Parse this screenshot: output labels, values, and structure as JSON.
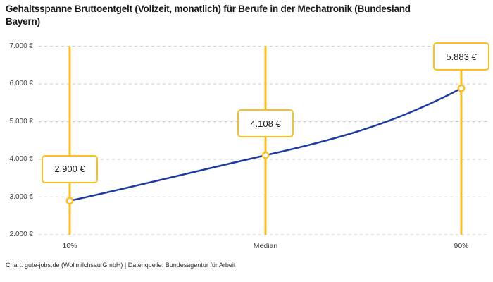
{
  "title": "Gehaltsspanne Bruttoentgelt (Vollzeit, monatlich) für Berufe in der Mechatronik (Bundesland Bayern)",
  "footer": "Chart: gute-jobs.de (Wollmilchsau GmbH) | Datenquelle: Bundesagentur für Arbeit",
  "colors": {
    "accent_gold": "#f9c11f",
    "line_blue": "#1e3a9f",
    "grid": "#cbcbcb",
    "marker_fill": "#ffffff",
    "title_text": "#1a1a1a",
    "axis_text": "#3f3f3f"
  },
  "chart_data": {
    "type": "line",
    "title": "Gehaltsspanne Bruttoentgelt (Vollzeit, monatlich) für Berufe in der Mechatronik (Bundesland Bayern)",
    "categories": [
      "10%",
      "Median",
      "90%"
    ],
    "values": [
      2900,
      4108,
      5883
    ],
    "value_labels": [
      "2.900 €",
      "4.108 €",
      "5.883 €"
    ],
    "xlabel": "",
    "ylabel": "",
    "ylim": [
      2000,
      7000
    ],
    "y_ticks": [
      {
        "value": 7000,
        "label": "7.000 €"
      },
      {
        "value": 6000,
        "label": "6.000 €"
      },
      {
        "value": 5000,
        "label": "5.000 €"
      },
      {
        "value": 4000,
        "label": "4.000 €"
      },
      {
        "value": 3000,
        "label": "3.000 €"
      },
      {
        "value": 2000,
        "label": "2.000 €"
      }
    ],
    "grid": "horizontal dashed",
    "legend": "none",
    "annotations": "vertical gold range line at each percentile with boxed value label and open circle marker"
  }
}
